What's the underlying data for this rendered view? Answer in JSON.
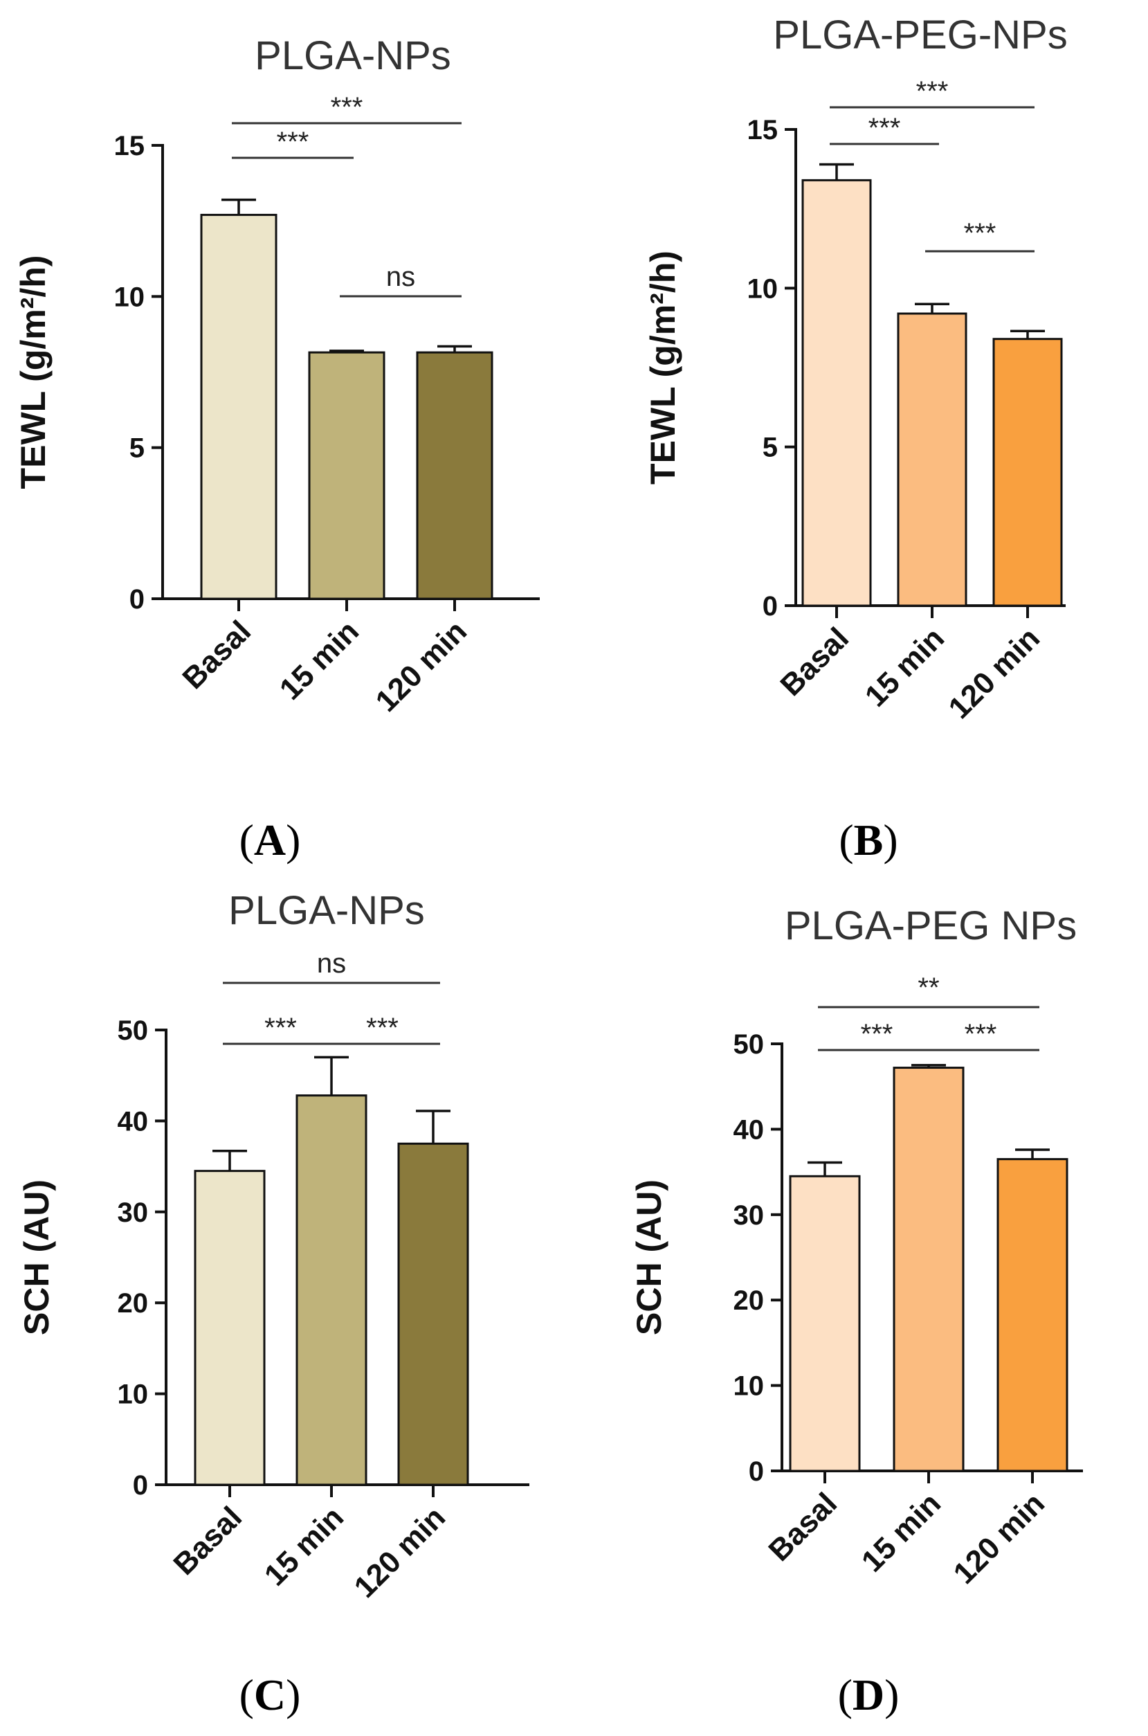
{
  "chart_data": [
    {
      "id": "A",
      "panel_label": "A",
      "type": "bar",
      "title": "PLGA-NPs",
      "ylabel": "TEWL (g/m²/h)",
      "ylim": [
        0,
        15
      ],
      "yticks": [
        0,
        5,
        10,
        15
      ],
      "categories": [
        "Basal",
        "15 min",
        "120 min"
      ],
      "values": [
        12.7,
        8.15,
        8.15
      ],
      "errors": [
        0.5,
        0.05,
        0.2
      ],
      "colors": [
        "#ece5c9",
        "#bfb37a",
        "#8a7a3c"
      ],
      "comparisons": [
        {
          "from": 0,
          "to": 1,
          "label": "***"
        },
        {
          "from": 0,
          "to": 2,
          "label": "***"
        },
        {
          "from": 1,
          "to": 2,
          "label": "ns"
        }
      ]
    },
    {
      "id": "B",
      "panel_label": "B",
      "type": "bar",
      "title": "PLGA-PEG-NPs",
      "ylabel": "TEWL (g/m²/h)",
      "ylim": [
        0,
        15
      ],
      "yticks": [
        0,
        5,
        10,
        15
      ],
      "categories": [
        "Basal",
        "15 min",
        "120 min"
      ],
      "values": [
        13.4,
        9.2,
        8.4
      ],
      "errors": [
        0.5,
        0.3,
        0.25
      ],
      "colors": [
        "#fde0c4",
        "#fbbc80",
        "#f9a03f"
      ],
      "comparisons": [
        {
          "from": 0,
          "to": 1,
          "label": "***"
        },
        {
          "from": 0,
          "to": 2,
          "label": "***"
        },
        {
          "from": 1,
          "to": 2,
          "label": "***"
        }
      ]
    },
    {
      "id": "C",
      "panel_label": "C",
      "type": "bar",
      "title": "PLGA-NPs",
      "ylabel": "SCH (AU)",
      "ylim": [
        0,
        50
      ],
      "yticks": [
        0,
        10,
        20,
        30,
        40,
        50
      ],
      "categories": [
        "Basal",
        "15 min",
        "120 min"
      ],
      "values": [
        34.5,
        42.8,
        37.5
      ],
      "errors": [
        2.2,
        4.2,
        3.6
      ],
      "colors": [
        "#ece5c9",
        "#bfb37a",
        "#8a7a3c"
      ],
      "comparisons": [
        {
          "from": 0,
          "to": 1,
          "label": "***"
        },
        {
          "from": 1,
          "to": 2,
          "label": "***"
        },
        {
          "from": 0,
          "to": 2,
          "label": "ns"
        }
      ]
    },
    {
      "id": "D",
      "panel_label": "D",
      "type": "bar",
      "title": "PLGA-PEG NPs",
      "ylabel": "SCH (AU)",
      "ylim": [
        0,
        50
      ],
      "yticks": [
        0,
        10,
        20,
        30,
        40,
        50
      ],
      "categories": [
        "Basal",
        "15 min",
        "120 min"
      ],
      "values": [
        34.5,
        47.2,
        36.5
      ],
      "errors": [
        1.6,
        0.3,
        1.1
      ],
      "colors": [
        "#fde0c4",
        "#fbbc80",
        "#f9a03f"
      ],
      "comparisons": [
        {
          "from": 0,
          "to": 1,
          "label": "***"
        },
        {
          "from": 1,
          "to": 2,
          "label": "***"
        },
        {
          "from": 0,
          "to": 2,
          "label": "**"
        }
      ]
    }
  ]
}
